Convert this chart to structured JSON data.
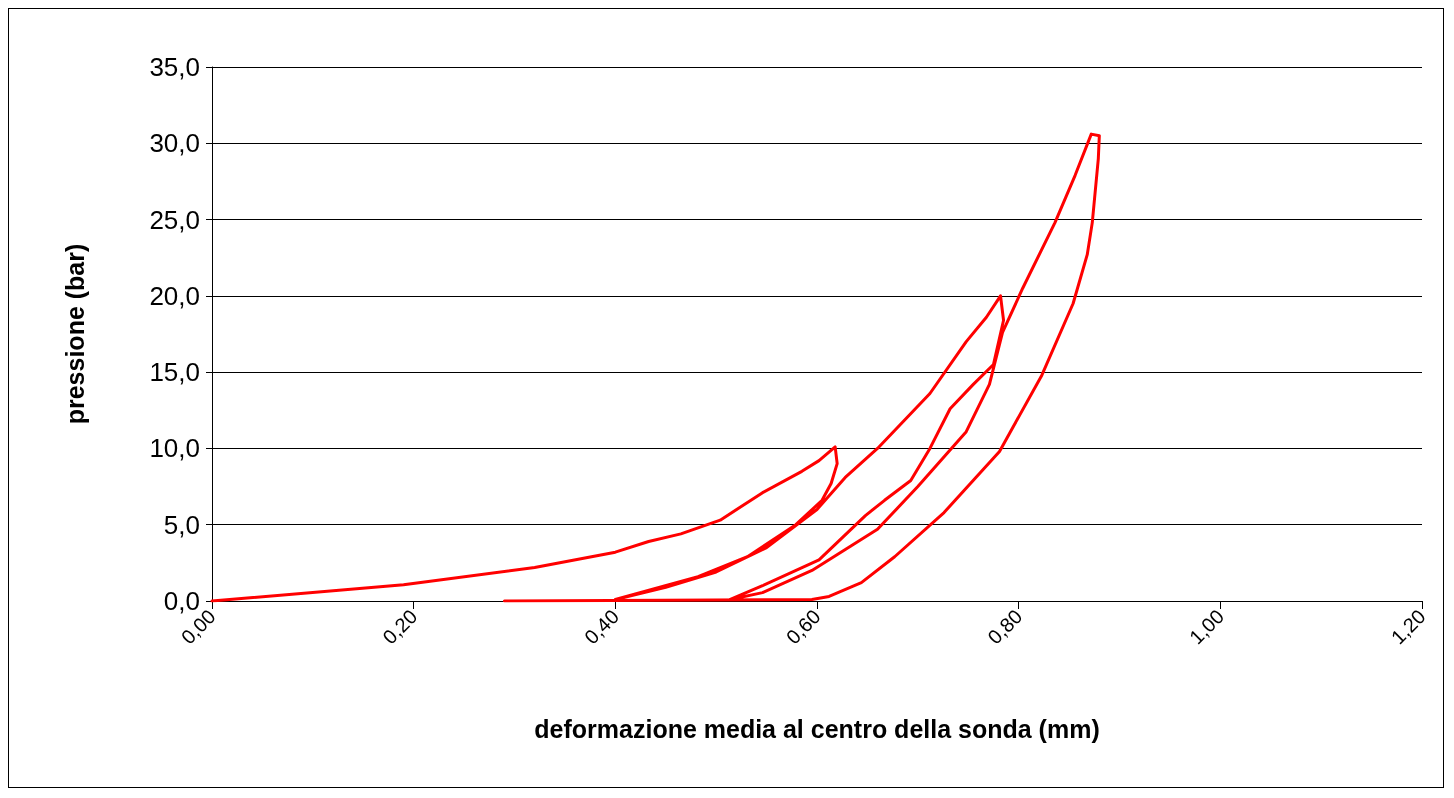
{
  "chart_data": {
    "type": "line",
    "xlabel": "deformazione media al centro della sonda (mm)",
    "ylabel": "pressione (bar)",
    "series": [
      {
        "color": "#ff0000",
        "x": [
          0,
          0.19,
          0.32,
          0.4,
          0.433,
          0.465,
          0.504,
          0.546,
          0.585,
          0.602,
          0.618,
          0.62,
          0.614,
          0.605,
          0.579,
          0.531,
          0.482,
          0.4,
          0.45,
          0.5,
          0.55,
          0.6,
          0.628,
          0.66,
          0.712,
          0.748,
          0.768,
          0.782,
          0.785,
          0.775,
          0.755,
          0.732,
          0.712,
          0.693,
          0.667,
          0.648,
          0.602,
          0.546,
          0.514,
          0.546,
          0.595,
          0.66,
          0.7,
          0.748,
          0.771,
          0.784,
          0.804,
          0.836,
          0.856,
          0.872,
          0.88,
          0.879,
          0.873,
          0.868,
          0.854,
          0.823,
          0.781,
          0.726,
          0.677,
          0.644,
          0.612,
          0.595,
          0.29
        ],
        "values": [
          0,
          1.07,
          2.2,
          3.2,
          3.9,
          4.4,
          5.3,
          7.1,
          8.5,
          9.2,
          10.1,
          9.0,
          7.7,
          6.6,
          5.0,
          2.9,
          1.6,
          0.1,
          0.9,
          1.9,
          3.5,
          6.0,
          8.1,
          10.0,
          13.6,
          17.0,
          18.6,
          20.0,
          18.4,
          15.5,
          14.2,
          12.6,
          10.0,
          7.9,
          6.6,
          5.6,
          2.7,
          1.0,
          0.1,
          0.55,
          2.0,
          4.7,
          7.5,
          11.1,
          14.2,
          17.6,
          20.5,
          24.8,
          27.9,
          30.6,
          30.5,
          29.0,
          24.8,
          22.7,
          19.5,
          14.8,
          9.8,
          5.8,
          2.9,
          1.2,
          0.3,
          0.1,
          0
        ]
      }
    ],
    "xlim": [
      0,
      1.2
    ],
    "xticks": [
      {
        "value": 0,
        "label": "0,00"
      },
      {
        "value": 0.2,
        "label": "0,20"
      },
      {
        "value": 0.4,
        "label": "0,40"
      },
      {
        "value": 0.6,
        "label": "0,60"
      },
      {
        "value": 0.8,
        "label": "0,80"
      },
      {
        "value": 1.0,
        "label": "1,00"
      },
      {
        "value": 1.2,
        "label": "1,20"
      }
    ],
    "ylim": [
      0,
      35
    ],
    "yticks": [
      {
        "value": 0,
        "label": "0,0"
      },
      {
        "value": 5,
        "label": "5,0"
      },
      {
        "value": 10,
        "label": "10,0"
      },
      {
        "value": 15,
        "label": "15,0"
      },
      {
        "value": 20,
        "label": "20,0"
      },
      {
        "value": 25,
        "label": "25,0"
      },
      {
        "value": 30,
        "label": "30,0"
      },
      {
        "value": 35,
        "label": "35,0"
      }
    ],
    "grid": "y",
    "marker": "none",
    "line_style": "solid"
  }
}
